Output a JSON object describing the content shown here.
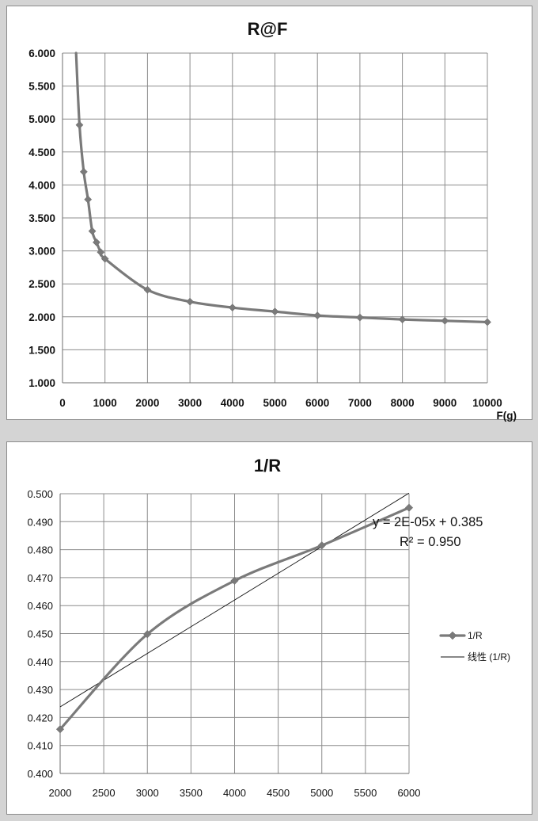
{
  "chart_data": [
    {
      "type": "line",
      "title": "R@F",
      "xlabel": "F(g)",
      "ylabel": "",
      "xlim": [
        0,
        10000
      ],
      "ylim": [
        1.0,
        6.0
      ],
      "x_ticks": [
        "0",
        "1000",
        "2000",
        "3000",
        "4000",
        "5000",
        "6000",
        "7000",
        "8000",
        "9000",
        "10000"
      ],
      "y_ticks": [
        "1.000",
        "1.500",
        "2.000",
        "2.500",
        "3.000",
        "3.500",
        "4.000",
        "4.500",
        "5.000",
        "5.500",
        "6.000"
      ],
      "grid": true,
      "legend": "none",
      "line_start": {
        "x": 320,
        "y": 6.0
      },
      "series": [
        {
          "x": [
            400,
            500,
            600,
            700,
            800,
            900,
            1000,
            2000,
            3000,
            4000,
            5000,
            6000,
            7000,
            8000,
            9000,
            10000
          ],
          "values": [
            4.91,
            4.2,
            3.78,
            3.3,
            3.13,
            2.98,
            2.88,
            2.41,
            2.23,
            2.14,
            2.08,
            2.02,
            1.99,
            1.96,
            1.94,
            1.92
          ]
        }
      ]
    },
    {
      "type": "line",
      "title": "1/R",
      "xlabel": "",
      "ylabel": "",
      "xlim": [
        2000,
        6000
      ],
      "ylim": [
        0.4,
        0.5
      ],
      "x_ticks": [
        "2000",
        "2500",
        "3000",
        "3500",
        "4000",
        "4500",
        "5000",
        "5500",
        "6000"
      ],
      "y_ticks": [
        "0.400",
        "0.410",
        "0.420",
        "0.430",
        "0.440",
        "0.450",
        "0.460",
        "0.470",
        "0.480",
        "0.490",
        "0.500"
      ],
      "grid": true,
      "legend": "right",
      "series": [
        {
          "name": "1/R",
          "x": [
            2000,
            3000,
            4000,
            5000,
            6000
          ],
          "values": [
            0.4158,
            0.4498,
            0.4689,
            0.4815,
            0.495
          ]
        }
      ],
      "trendline": {
        "name": "线性 (1/R)",
        "equation": "y = 2E-05x + 0.385",
        "r2_label": "R² = 0.950",
        "x": [
          2000,
          6000
        ],
        "values": [
          0.4238,
          0.5002
        ]
      }
    }
  ]
}
